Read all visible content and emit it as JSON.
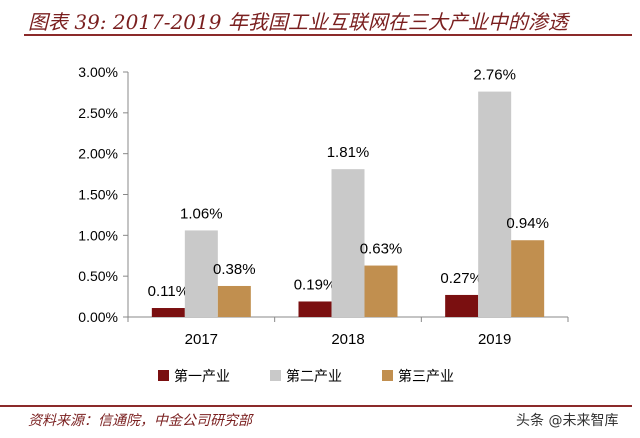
{
  "title": "图表 39: 2017-2019 年我国工业互联网在三大产业中的渗透",
  "source": "资料来源：信通院，中金公司研究部",
  "watermark": "头条 @未来智库",
  "chart_data": {
    "type": "bar",
    "categories": [
      "2017",
      "2018",
      "2019"
    ],
    "series": [
      {
        "name": "第一产业",
        "values": [
          0.11,
          0.19,
          0.27
        ],
        "color": "#7a0f10"
      },
      {
        "name": "第二产业",
        "values": [
          1.06,
          1.81,
          2.76
        ],
        "color": "#c9c9c9"
      },
      {
        "name": "第三产业",
        "values": [
          0.38,
          0.63,
          0.94
        ],
        "color": "#c18f4f"
      }
    ],
    "data_labels": [
      [
        "0.11%",
        "0.19%",
        "0.27%"
      ],
      [
        "1.06%",
        "1.81%",
        "2.76%"
      ],
      [
        "0.38%",
        "0.63%",
        "0.94%"
      ]
    ],
    "yticks": [
      "0.00%",
      "0.50%",
      "1.00%",
      "1.50%",
      "2.00%",
      "2.50%",
      "3.00%"
    ],
    "ylim": [
      0,
      3
    ],
    "legend": "bottom",
    "grid": false
  }
}
